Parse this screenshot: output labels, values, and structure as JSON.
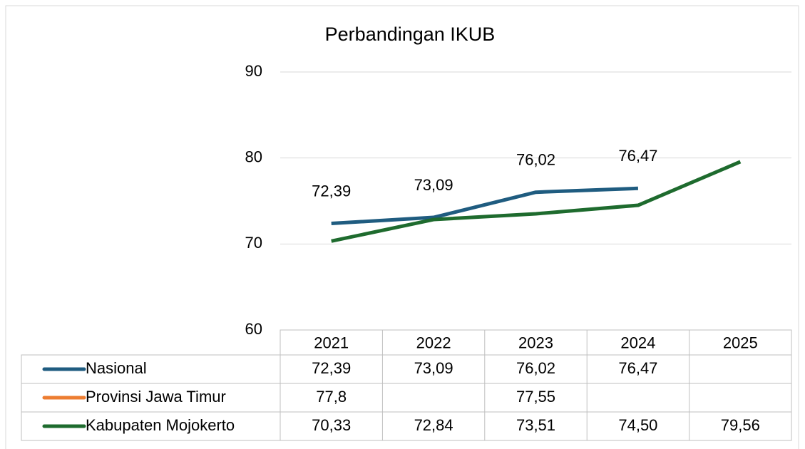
{
  "chart_data": {
    "type": "line",
    "title": "Perbandingan IKUB",
    "categories": [
      "2021",
      "2022",
      "2023",
      "2024",
      "2025"
    ],
    "series": [
      {
        "name": "Nasional",
        "color": "#1f5c80",
        "values": [
          72.39,
          73.09,
          76.02,
          76.47,
          null
        ],
        "value_labels": [
          "72,39",
          "73,09",
          "76,02",
          "76,47",
          null
        ]
      },
      {
        "name": "Provinsi Jawa Timur",
        "color": "#ed7d31",
        "values": [
          77.8,
          null,
          77.55,
          null,
          null
        ],
        "value_labels": [
          "77,8",
          null,
          "77,55",
          null,
          null
        ]
      },
      {
        "name": "Kabupaten Mojokerto",
        "color": "#1e6b2e",
        "values": [
          70.33,
          72.84,
          73.51,
          74.5,
          79.56
        ],
        "value_labels": [
          "70,33",
          "72,84",
          "73,51",
          "74,50",
          "79,56"
        ]
      }
    ],
    "data_labels_series": 0,
    "ylim": [
      60,
      90
    ],
    "yticks": [
      60,
      70,
      80,
      90
    ],
    "grid": true
  }
}
